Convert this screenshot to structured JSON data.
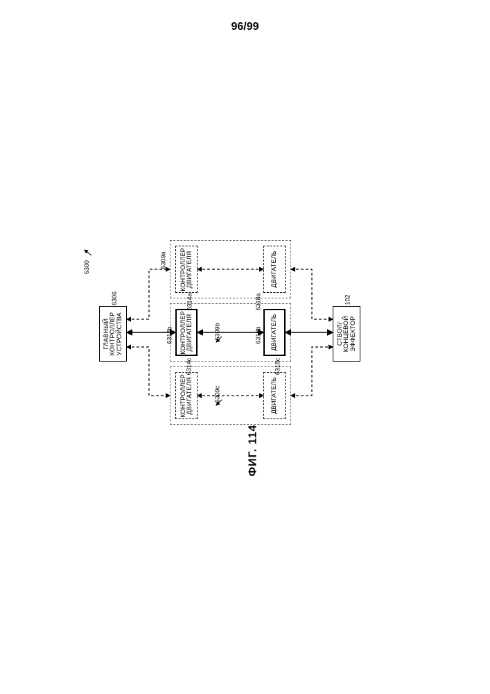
{
  "page_number": "96/99",
  "figure_label": "ФИГ. 114",
  "overall_ref": "6300",
  "blocks": {
    "main_controller": {
      "ref": "6306",
      "text": "ГЛАВНЫЙ\nКОНТРОЛЛЕР\nУСТРОЙСТВА"
    },
    "effector": {
      "ref": "102",
      "text": "СТВОЛ/\nКОНЦЕВОЙ\nЭФФЕКТОР"
    },
    "mc_a": {
      "ref": "6314a",
      "text": "КОНТРОЛЛЕР\nДВИГАТЕЛЯ"
    },
    "mc_b": {
      "ref": "6314b",
      "text": "КОНТРОЛЛЕР\nДВИГАТЕЛЯ"
    },
    "mc_c": {
      "ref": "6314c",
      "text": "КОНТРОЛЛЕР\nДВИГАТЕЛЯ"
    },
    "m_a": {
      "ref": "6318a",
      "text": "ДВИГАТЕЛЬ"
    },
    "m_b": {
      "ref": "6318b",
      "text": "ДВИГАТЕЛЬ"
    },
    "m_c": {
      "ref": "6318c",
      "text": "ДВИГАТЕЛЬ"
    }
  },
  "groups": {
    "g_a": "6309a",
    "g_b": "6309b",
    "g_c": "6309c"
  },
  "style": {
    "stroke": "#000000",
    "dash": "4,3",
    "arrow_size": 5
  }
}
